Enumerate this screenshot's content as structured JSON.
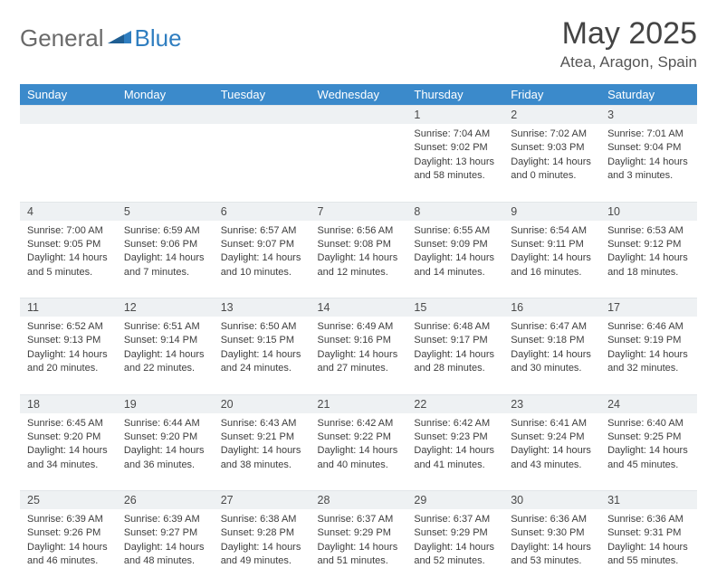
{
  "brand": {
    "part1": "General",
    "part2": "Blue"
  },
  "header": {
    "title": "May 2025",
    "location": "Atea, Aragon, Spain"
  },
  "colors": {
    "header_bg": "#3b8acb",
    "header_text": "#ffffff",
    "daynum_bg": "#eef1f3",
    "text": "#3d3d3d",
    "brand_grey": "#6a6a6a",
    "brand_blue": "#2f7ec0"
  },
  "weekdays": [
    "Sunday",
    "Monday",
    "Tuesday",
    "Wednesday",
    "Thursday",
    "Friday",
    "Saturday"
  ],
  "labels": {
    "sunrise": "Sunrise:",
    "sunset": "Sunset:",
    "daylight": "Daylight:"
  },
  "weeks": [
    [
      null,
      null,
      null,
      null,
      {
        "d": "1",
        "sr": "7:04 AM",
        "ss": "9:02 PM",
        "dl": "13 hours and 58 minutes."
      },
      {
        "d": "2",
        "sr": "7:02 AM",
        "ss": "9:03 PM",
        "dl": "14 hours and 0 minutes."
      },
      {
        "d": "3",
        "sr": "7:01 AM",
        "ss": "9:04 PM",
        "dl": "14 hours and 3 minutes."
      }
    ],
    [
      {
        "d": "4",
        "sr": "7:00 AM",
        "ss": "9:05 PM",
        "dl": "14 hours and 5 minutes."
      },
      {
        "d": "5",
        "sr": "6:59 AM",
        "ss": "9:06 PM",
        "dl": "14 hours and 7 minutes."
      },
      {
        "d": "6",
        "sr": "6:57 AM",
        "ss": "9:07 PM",
        "dl": "14 hours and 10 minutes."
      },
      {
        "d": "7",
        "sr": "6:56 AM",
        "ss": "9:08 PM",
        "dl": "14 hours and 12 minutes."
      },
      {
        "d": "8",
        "sr": "6:55 AM",
        "ss": "9:09 PM",
        "dl": "14 hours and 14 minutes."
      },
      {
        "d": "9",
        "sr": "6:54 AM",
        "ss": "9:11 PM",
        "dl": "14 hours and 16 minutes."
      },
      {
        "d": "10",
        "sr": "6:53 AM",
        "ss": "9:12 PM",
        "dl": "14 hours and 18 minutes."
      }
    ],
    [
      {
        "d": "11",
        "sr": "6:52 AM",
        "ss": "9:13 PM",
        "dl": "14 hours and 20 minutes."
      },
      {
        "d": "12",
        "sr": "6:51 AM",
        "ss": "9:14 PM",
        "dl": "14 hours and 22 minutes."
      },
      {
        "d": "13",
        "sr": "6:50 AM",
        "ss": "9:15 PM",
        "dl": "14 hours and 24 minutes."
      },
      {
        "d": "14",
        "sr": "6:49 AM",
        "ss": "9:16 PM",
        "dl": "14 hours and 27 minutes."
      },
      {
        "d": "15",
        "sr": "6:48 AM",
        "ss": "9:17 PM",
        "dl": "14 hours and 28 minutes."
      },
      {
        "d": "16",
        "sr": "6:47 AM",
        "ss": "9:18 PM",
        "dl": "14 hours and 30 minutes."
      },
      {
        "d": "17",
        "sr": "6:46 AM",
        "ss": "9:19 PM",
        "dl": "14 hours and 32 minutes."
      }
    ],
    [
      {
        "d": "18",
        "sr": "6:45 AM",
        "ss": "9:20 PM",
        "dl": "14 hours and 34 minutes."
      },
      {
        "d": "19",
        "sr": "6:44 AM",
        "ss": "9:20 PM",
        "dl": "14 hours and 36 minutes."
      },
      {
        "d": "20",
        "sr": "6:43 AM",
        "ss": "9:21 PM",
        "dl": "14 hours and 38 minutes."
      },
      {
        "d": "21",
        "sr": "6:42 AM",
        "ss": "9:22 PM",
        "dl": "14 hours and 40 minutes."
      },
      {
        "d": "22",
        "sr": "6:42 AM",
        "ss": "9:23 PM",
        "dl": "14 hours and 41 minutes."
      },
      {
        "d": "23",
        "sr": "6:41 AM",
        "ss": "9:24 PM",
        "dl": "14 hours and 43 minutes."
      },
      {
        "d": "24",
        "sr": "6:40 AM",
        "ss": "9:25 PM",
        "dl": "14 hours and 45 minutes."
      }
    ],
    [
      {
        "d": "25",
        "sr": "6:39 AM",
        "ss": "9:26 PM",
        "dl": "14 hours and 46 minutes."
      },
      {
        "d": "26",
        "sr": "6:39 AM",
        "ss": "9:27 PM",
        "dl": "14 hours and 48 minutes."
      },
      {
        "d": "27",
        "sr": "6:38 AM",
        "ss": "9:28 PM",
        "dl": "14 hours and 49 minutes."
      },
      {
        "d": "28",
        "sr": "6:37 AM",
        "ss": "9:29 PM",
        "dl": "14 hours and 51 minutes."
      },
      {
        "d": "29",
        "sr": "6:37 AM",
        "ss": "9:29 PM",
        "dl": "14 hours and 52 minutes."
      },
      {
        "d": "30",
        "sr": "6:36 AM",
        "ss": "9:30 PM",
        "dl": "14 hours and 53 minutes."
      },
      {
        "d": "31",
        "sr": "6:36 AM",
        "ss": "9:31 PM",
        "dl": "14 hours and 55 minutes."
      }
    ]
  ]
}
